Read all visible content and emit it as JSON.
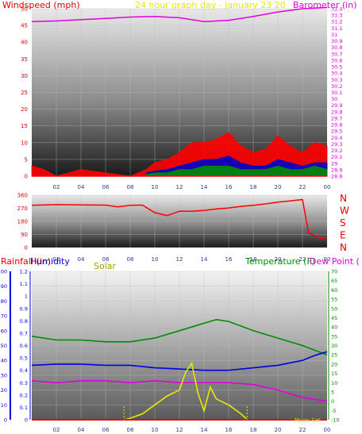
{
  "chart_data": [
    {
      "type": "line",
      "title": "24 hour graph day - January 23 20",
      "title_color": "#e8e800",
      "left_axis": {
        "label": "Windspeed (mph)",
        "color": "#e00000",
        "ticks": [
          "0",
          "5",
          "10",
          "15",
          "20",
          "25",
          "30",
          "35",
          "40",
          "45",
          "50"
        ],
        "range": [
          0,
          50
        ]
      },
      "right_axis": {
        "label": "Barometer (in)",
        "color": "#e000e0",
        "ticks": [
          "28.8",
          "28.9",
          "29",
          "29.1",
          "29.2",
          "29.3",
          "29.4",
          "29.5",
          "29.6",
          "29.7",
          "29.8",
          "29.9",
          "30",
          "30.1",
          "30.2",
          "30.3",
          "30.4",
          "30.5",
          "30.6",
          "30.7",
          "30.8",
          "30.9",
          "31",
          "31.1",
          "31.2",
          "31.3",
          "31.4"
        ],
        "range": [
          28.8,
          31.4
        ]
      },
      "x_ticks": [
        "02",
        "04",
        "06",
        "08",
        "10",
        "12",
        "14",
        "16",
        "18",
        "20",
        "22",
        "00"
      ],
      "series": [
        {
          "name": "Barometer (in)",
          "color": "#e000e0",
          "axis": "right",
          "x": [
            0,
            2,
            4,
            6,
            8,
            10,
            12,
            14,
            16,
            18,
            20,
            22,
            24
          ],
          "y": [
            31.2,
            31.21,
            31.23,
            31.25,
            31.27,
            31.28,
            31.26,
            31.2,
            31.22,
            31.28,
            31.35,
            31.4,
            31.42
          ]
        },
        {
          "name": "Wind gust",
          "color": "#ff0000",
          "axis": "left",
          "x": [
            0,
            1,
            2,
            4,
            6,
            8,
            9.3,
            10,
            11,
            12,
            13,
            14,
            15,
            16,
            17,
            18,
            19,
            20,
            21,
            22,
            23,
            24
          ],
          "y": [
            3,
            2,
            0,
            2,
            1,
            0,
            2,
            4,
            5,
            7,
            10,
            10,
            11,
            13,
            9,
            7,
            8,
            12,
            9,
            7,
            10,
            9
          ]
        },
        {
          "name": "Wind average",
          "color": "#0000c8",
          "axis": "left",
          "x": [
            9.3,
            10,
            11,
            12,
            13,
            14,
            15,
            16,
            17,
            18,
            19,
            20,
            21,
            22,
            23,
            24
          ],
          "y": [
            1,
            1.5,
            2,
            3,
            4,
            5,
            5,
            6,
            4,
            3,
            3,
            5,
            4,
            3,
            4,
            4
          ]
        },
        {
          "name": "Wind lull",
          "color": "#008c00",
          "axis": "left",
          "x": [
            9.3,
            10,
            11,
            12,
            13,
            14,
            15,
            16,
            17,
            18,
            19,
            20,
            21,
            22,
            23,
            24
          ],
          "y": [
            0.5,
            1,
            1,
            2,
            2,
            3,
            3,
            3,
            2,
            2,
            2,
            3,
            2,
            2,
            3,
            2
          ]
        }
      ]
    },
    {
      "type": "line",
      "left_axis": {
        "ticks": [
          "0",
          "90",
          "180",
          "270",
          "360"
        ],
        "range": [
          0,
          360
        ]
      },
      "right_labels": [
        "N",
        "W",
        "S",
        "E",
        "N"
      ],
      "right_labels_color": "#e00000",
      "x_ticks": [
        "02",
        "04",
        "06",
        "08",
        "10",
        "12",
        "14",
        "16",
        "18",
        "20",
        "22",
        "00"
      ],
      "series": [
        {
          "name": "Wind direction",
          "color": "#ff0000",
          "x": [
            0,
            2,
            4,
            6,
            7,
            8,
            9,
            10,
            11,
            12,
            13,
            14,
            15,
            16,
            17,
            18,
            19,
            20,
            21,
            22,
            22.5,
            23,
            23.5,
            24
          ],
          "y": [
            290,
            295,
            293,
            292,
            280,
            290,
            292,
            240,
            220,
            250,
            250,
            255,
            265,
            272,
            283,
            290,
            300,
            312,
            320,
            330,
            100,
            80,
            60,
            70
          ]
        }
      ]
    },
    {
      "type": "line",
      "legend": [
        {
          "label": "Rainfall (in)",
          "color": "#e00000"
        },
        {
          "label": "Humidity",
          "color": "#0000e0"
        },
        {
          "label": "Solar",
          "color": "#a0a000"
        },
        {
          "label": "Temperature (F)",
          "color": "#008c00"
        },
        {
          "label": "Dew Point (",
          "color": "#e000e0"
        }
      ],
      "rain_axis": {
        "ticks": [
          "0",
          "0.1",
          "0.2",
          "0.3",
          "0.4",
          "0.5",
          "0.6",
          "0.7",
          "0.8",
          "0.9",
          "1"
        ],
        "range": [
          0,
          1
        ]
      },
      "humidity_axis": {
        "ticks": [
          "0",
          "0.1",
          "0.2",
          "0.3",
          "0.4",
          "0.5",
          "0.6",
          "0.7",
          "0.8",
          "0.9",
          "1",
          "1.1",
          "1.2"
        ],
        "range": [
          0,
          1.2
        ]
      },
      "temp_axis": {
        "ticks": [
          "-10",
          "-5",
          "0",
          "5",
          "10",
          "15",
          "20",
          "25",
          "30",
          "35",
          "40",
          "45",
          "50",
          "55",
          "60",
          "65",
          "70"
        ],
        "range": [
          -10,
          70
        ]
      },
      "left_scale": {
        "ticks": [
          "0",
          "10",
          "20",
          "30",
          "40",
          "50",
          "60",
          "70",
          "80",
          "90",
          "100"
        ],
        "range": [
          0,
          100
        ]
      },
      "x_ticks": [
        "02",
        "04",
        "06",
        "08",
        "10",
        "12",
        "14",
        "16",
        "18",
        "20",
        "22",
        "00"
      ],
      "annotation": "Moon Set",
      "series": [
        {
          "name": "Temperature (F)",
          "color": "#008c00",
          "axis": "temp",
          "x": [
            0,
            2,
            4,
            6,
            8,
            10,
            12,
            14,
            15,
            16,
            18,
            20,
            22,
            24
          ],
          "y": [
            35,
            33,
            33,
            32,
            32,
            34,
            38,
            42,
            44,
            43,
            38,
            34,
            30,
            25
          ]
        },
        {
          "name": "Humidity",
          "color": "#0000e0",
          "axis": "humidity",
          "x": [
            0,
            2,
            4,
            6,
            8,
            10,
            12,
            14,
            16,
            18,
            20,
            22,
            23,
            24
          ],
          "y": [
            0.44,
            0.45,
            0.45,
            0.44,
            0.44,
            0.42,
            0.41,
            0.4,
            0.4,
            0.42,
            0.44,
            0.48,
            0.52,
            0.55
          ]
        },
        {
          "name": "Dew Point",
          "color": "#e000e0",
          "axis": "temp",
          "x": [
            0,
            2,
            4,
            6,
            8,
            10,
            12,
            14,
            16,
            18,
            20,
            22,
            24
          ],
          "y": [
            11,
            10,
            11,
            11,
            10,
            11,
            10,
            10,
            10,
            9,
            6,
            2,
            0
          ]
        },
        {
          "name": "Solar",
          "color": "#e8e800",
          "axis": "left",
          "x": [
            0,
            7.5,
            8,
            9,
            10,
            11,
            12,
            12.5,
            13,
            13.5,
            14,
            14.5,
            15,
            16,
            17,
            17.5,
            24
          ],
          "y": [
            0,
            0,
            1,
            4,
            10,
            16,
            20,
            32,
            38,
            18,
            6,
            22,
            14,
            10,
            4,
            0,
            0
          ]
        },
        {
          "name": "Rainfall (in)",
          "color": "#e00000",
          "axis": "rain",
          "x": [
            0,
            24
          ],
          "y": [
            0,
            0
          ]
        }
      ]
    }
  ]
}
